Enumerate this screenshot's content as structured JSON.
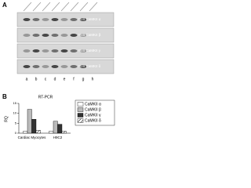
{
  "panel_a": {
    "label": "A",
    "blots": [
      "W.B CaMKII α",
      "W.B CaMKII β",
      "W.B CaMKII γ",
      "W.B CaMKII δ"
    ],
    "lanes": [
      "a",
      "b",
      "c",
      "d",
      "e",
      "f",
      "g",
      "h"
    ]
  },
  "chart_data": {
    "type": "bar",
    "panel_label": "B",
    "title": "RT-PCR",
    "y_label": "RQ",
    "categories": [
      "Cardiac Myocytes",
      "H9C2"
    ],
    "series": [
      {
        "name": "CaMKII α",
        "color": "#ffffff",
        "values": [
          1,
          1
        ]
      },
      {
        "name": "CaMKII β",
        "color": "#bbbbbb",
        "values": [
          12,
          6
        ]
      },
      {
        "name": "CaMKII γ",
        "color": "#333333",
        "values": [
          7,
          4.5
        ]
      },
      {
        "name": "CaMKII δ",
        "color": "hatch",
        "values": [
          1.5,
          1
        ]
      }
    ],
    "ylim": [
      0,
      15
    ],
    "yticks": [
      0,
      5,
      10,
      15
    ]
  }
}
